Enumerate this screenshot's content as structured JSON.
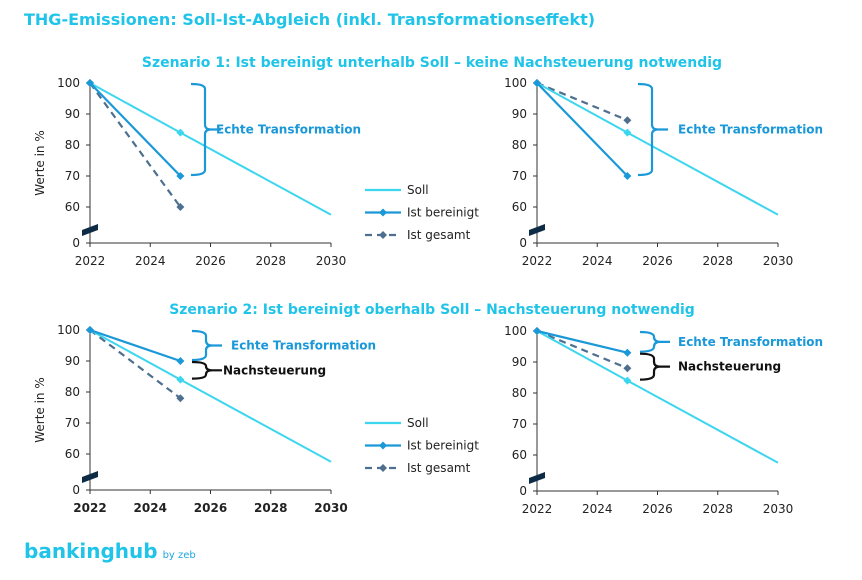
{
  "title": "THG-Emissionen: Soll-Ist-Abgleich (inkl. Transformationseffekt)",
  "scenarios": [
    "Szenario 1: Ist bereinigt unterhalb Soll – keine Nachsteuerung notwendig",
    "Szenario 2: Ist bereinigt oberhalb Soll – Nachsteuerung notwendig"
  ],
  "legend": {
    "soll": "Soll",
    "ist_bereinigt": "Ist bereinigt",
    "ist_gesamt": "Ist gesamt"
  },
  "colors": {
    "soll": "#3dd6ef",
    "ist_bereinigt": "#1a98d8",
    "ist_gesamt": "#4e6f8f",
    "title": "#20c4e8",
    "black": "#111111"
  },
  "logo": {
    "main": "bankinghub",
    "by": "by zeb"
  },
  "chart_data": [
    {
      "type": "line",
      "ylabel": "Werte in %",
      "x_ticks": [
        "2022",
        "2024",
        "2026",
        "2028",
        "2030"
      ],
      "y_ticks": [
        "0",
        "60",
        "70",
        "80",
        "90",
        "100"
      ],
      "xlim": [
        2022,
        2030
      ],
      "ylim": [
        0,
        100
      ],
      "axis_break": [
        0,
        55
      ],
      "series": [
        {
          "key": "soll",
          "name": "Soll",
          "x": [
            2022,
            2025,
            2030
          ],
          "y": [
            100,
            84,
            57.5
          ],
          "marker_at": [
            2025
          ]
        },
        {
          "key": "ist_bereinigt",
          "name": "Ist bereinigt",
          "x": [
            2022,
            2025
          ],
          "y": [
            100,
            70
          ]
        },
        {
          "key": "ist_gesamt",
          "name": "Ist gesamt",
          "x": [
            2022,
            2025
          ],
          "y": [
            100,
            60
          ]
        }
      ],
      "annotations": [
        {
          "label": "Echte Transformation",
          "from": 100,
          "to": 70,
          "color": "ist_bereinigt"
        }
      ],
      "legend": "right"
    },
    {
      "type": "line",
      "ylabel": "",
      "x_ticks": [
        "2022",
        "2024",
        "2026",
        "2028",
        "2030"
      ],
      "y_ticks": [
        "0",
        "60",
        "70",
        "80",
        "90",
        "100"
      ],
      "xlim": [
        2022,
        2030
      ],
      "ylim": [
        0,
        100
      ],
      "axis_break": [
        0,
        55
      ],
      "series": [
        {
          "key": "soll",
          "name": "Soll",
          "x": [
            2022,
            2025,
            2030
          ],
          "y": [
            100,
            84,
            57.5
          ],
          "marker_at": [
            2025
          ]
        },
        {
          "key": "ist_bereinigt",
          "name": "Ist bereinigt",
          "x": [
            2022,
            2025
          ],
          "y": [
            100,
            70
          ]
        },
        {
          "key": "ist_gesamt",
          "name": "Ist gesamt",
          "x": [
            2022,
            2025
          ],
          "y": [
            100,
            88
          ]
        }
      ],
      "annotations": [
        {
          "label": "Echte Transformation",
          "from": 100,
          "to": 70,
          "color": "ist_bereinigt"
        }
      ]
    },
    {
      "type": "line",
      "ylabel": "Werte in %",
      "x_ticks": [
        "2022",
        "2024",
        "2026",
        "2028",
        "2030"
      ],
      "y_ticks": [
        "0",
        "60",
        "70",
        "80",
        "90",
        "100"
      ],
      "xlim": [
        2022,
        2030
      ],
      "ylim": [
        0,
        100
      ],
      "axis_break": [
        0,
        55
      ],
      "series": [
        {
          "key": "soll",
          "name": "Soll",
          "x": [
            2022,
            2025,
            2030
          ],
          "y": [
            100,
            84,
            57.5
          ],
          "marker_at": [
            2025
          ]
        },
        {
          "key": "ist_bereinigt",
          "name": "Ist bereinigt",
          "x": [
            2022,
            2025
          ],
          "y": [
            100,
            90
          ]
        },
        {
          "key": "ist_gesamt",
          "name": "Ist gesamt",
          "x": [
            2022,
            2025
          ],
          "y": [
            100,
            78
          ]
        }
      ],
      "annotations": [
        {
          "label": "Echte Transformation",
          "from": 100,
          "to": 90,
          "color": "ist_bereinigt"
        },
        {
          "label": "Nachsteuerung",
          "from": 90,
          "to": 84,
          "color": "black"
        }
      ],
      "legend": "right"
    },
    {
      "type": "line",
      "ylabel": "",
      "x_ticks": [
        "2022",
        "2024",
        "2026",
        "2028",
        "2030"
      ],
      "y_ticks": [
        "0",
        "60",
        "70",
        "80",
        "90",
        "100"
      ],
      "xlim": [
        2022,
        2030
      ],
      "ylim": [
        0,
        100
      ],
      "axis_break": [
        0,
        55
      ],
      "series": [
        {
          "key": "soll",
          "name": "Soll",
          "x": [
            2022,
            2025,
            2030
          ],
          "y": [
            100,
            84,
            57.5
          ],
          "marker_at": [
            2025
          ]
        },
        {
          "key": "ist_bereinigt",
          "name": "Ist bereinigt",
          "x": [
            2022,
            2025
          ],
          "y": [
            100,
            93
          ]
        },
        {
          "key": "ist_gesamt",
          "name": "Ist gesamt",
          "x": [
            2022,
            2025
          ],
          "y": [
            100,
            88
          ]
        }
      ],
      "annotations": [
        {
          "label": "Echte Transformation",
          "from": 100,
          "to": 93,
          "color": "ist_bereinigt"
        },
        {
          "label": "Nachsteuerung",
          "from": 93,
          "to": 84,
          "color": "black"
        }
      ]
    }
  ]
}
